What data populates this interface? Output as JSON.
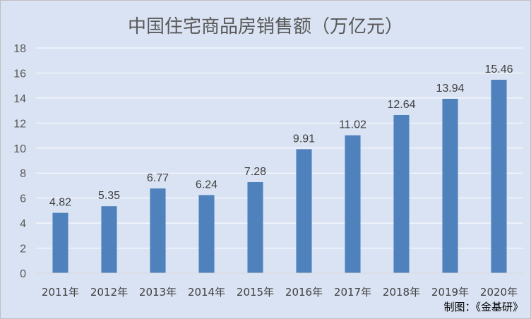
{
  "chart_data": {
    "type": "bar",
    "title": "中国住宅商品房销售额（万亿元）",
    "categories": [
      "2011年",
      "2012年",
      "2013年",
      "2014年",
      "2015年",
      "2016年",
      "2017年",
      "2018年",
      "2019年",
      "2020年"
    ],
    "values": [
      4.82,
      5.35,
      6.77,
      6.24,
      7.28,
      9.91,
      11.02,
      12.64,
      13.94,
      15.46
    ],
    "data_labels": [
      "4.82",
      "5.35",
      "6.77",
      "6.24",
      "7.28",
      "9.91",
      "11.02",
      "12.64",
      "13.94",
      "15.46"
    ],
    "y_ticks": [
      "0",
      "2",
      "4",
      "6",
      "8",
      "10",
      "12",
      "14",
      "16",
      "18"
    ],
    "ylim": [
      0,
      18
    ],
    "xlabel": "",
    "ylabel": "",
    "grid": true,
    "legend": "none",
    "bar_color": "#4f81bd",
    "grid_color": "#ffffff"
  },
  "credit": "制图：《金基研》"
}
